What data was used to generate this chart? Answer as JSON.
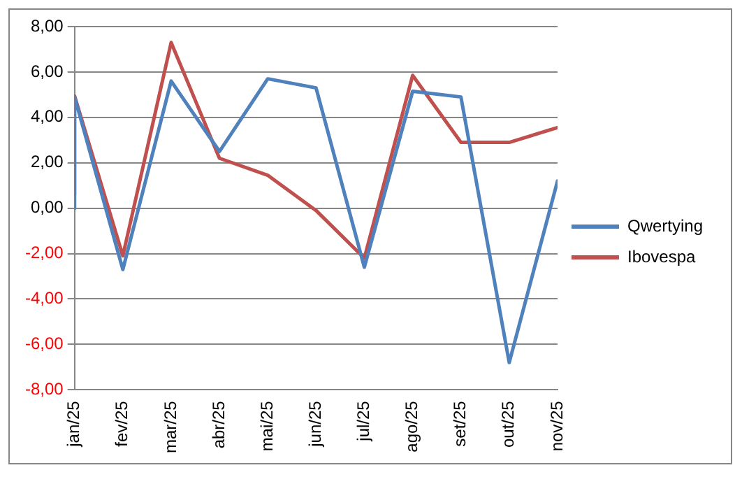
{
  "chart_data": {
    "type": "line",
    "legend": "right",
    "grid": "y",
    "marker": "none",
    "line_style": "solid",
    "xlim": [
      "2025-01",
      "2025-11"
    ],
    "xticks": [
      {
        "value": "2025-01",
        "label": "jan/25"
      },
      {
        "value": "2025-02",
        "label": "fev/25"
      },
      {
        "value": "2025-03",
        "label": "mar/25"
      },
      {
        "value": "2025-04",
        "label": "abr/25"
      },
      {
        "value": "2025-05",
        "label": "mai/25"
      },
      {
        "value": "2025-06",
        "label": "jun/25"
      },
      {
        "value": "2025-07",
        "label": "jul/25"
      },
      {
        "value": "2025-08",
        "label": "ago/25"
      },
      {
        "value": "2025-09",
        "label": "set/25"
      },
      {
        "value": "2025-10",
        "label": "out/25"
      },
      {
        "value": "2025-11",
        "label": "nov/25"
      }
    ],
    "ylim": [
      -8,
      8
    ],
    "yticks": [
      {
        "value": -8,
        "label": "-8,00"
      },
      {
        "value": -6,
        "label": "-6,00"
      },
      {
        "value": -4,
        "label": "-4,00"
      },
      {
        "value": -2,
        "label": "-2,00"
      },
      {
        "value": 0,
        "label": "0,00"
      },
      {
        "value": 2,
        "label": "2,00"
      },
      {
        "value": 4,
        "label": "4,00"
      },
      {
        "value": 6,
        "label": "6,00"
      },
      {
        "value": 8,
        "label": "8,00"
      }
    ],
    "series": [
      {
        "name": "Qwertying",
        "color": "#4f81bd",
        "x": [
          "2025-01",
          "2025-01",
          "2025-02",
          "2025-03",
          "2025-04",
          "2025-05",
          "2025-06",
          "2025-07",
          "2025-08",
          "2025-09",
          "2025-10",
          "2025-11"
        ],
        "values": [
          0.0,
          4.9,
          -2.7,
          5.6,
          2.5,
          5.7,
          5.3,
          -2.6,
          5.15,
          4.9,
          -6.8,
          1.2
        ]
      },
      {
        "name": "Ibovespa",
        "color": "#c0504d",
        "x": [
          "2025-01",
          "2025-01",
          "2025-02",
          "2025-03",
          "2025-04",
          "2025-05",
          "2025-06",
          "2025-07",
          "2025-08",
          "2025-09",
          "2025-10",
          "2025-11"
        ],
        "values": [
          0.6,
          4.95,
          -2.1,
          7.3,
          2.2,
          1.45,
          -0.1,
          -2.2,
          5.85,
          2.9,
          2.9,
          3.55
        ]
      }
    ]
  }
}
